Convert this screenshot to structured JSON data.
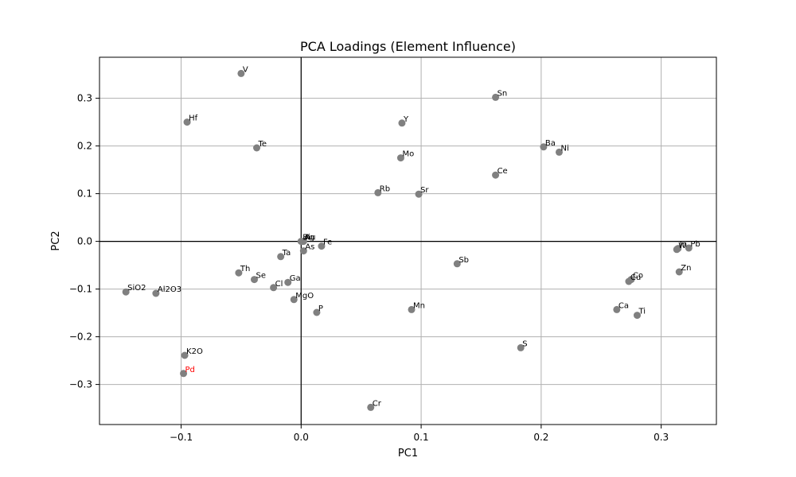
{
  "chart_data": {
    "type": "scatter",
    "title": "PCA Loadings (Element Influence)",
    "xlabel": "PC1",
    "ylabel": "PC2",
    "xlim": [
      -0.168,
      0.346
    ],
    "ylim": [
      -0.384,
      0.386
    ],
    "xticks": [
      -0.1,
      0.0,
      0.1,
      0.2,
      0.3
    ],
    "xtick_labels": [
      "−0.1",
      "0.0",
      "0.1",
      "0.2",
      "0.3"
    ],
    "yticks": [
      -0.3,
      -0.2,
      -0.1,
      0.0,
      0.1,
      0.2,
      0.3
    ],
    "ytick_labels": [
      "−0.3",
      "−0.2",
      "−0.1",
      "0.0",
      "0.1",
      "0.2",
      "0.3"
    ],
    "grid": true,
    "zero_lines": true,
    "point_color": "#808080",
    "highlight_color": "#ff0000",
    "points": [
      {
        "label": "V",
        "x": -0.05,
        "y": 0.352
      },
      {
        "label": "Hf",
        "x": -0.095,
        "y": 0.25
      },
      {
        "label": "Te",
        "x": -0.037,
        "y": 0.196
      },
      {
        "label": "Sn",
        "x": 0.162,
        "y": 0.302
      },
      {
        "label": "Y",
        "x": 0.084,
        "y": 0.248
      },
      {
        "label": "Mo",
        "x": 0.083,
        "y": 0.175
      },
      {
        "label": "Ba",
        "x": 0.202,
        "y": 0.198
      },
      {
        "label": "Ni",
        "x": 0.215,
        "y": 0.187
      },
      {
        "label": "Ce",
        "x": 0.162,
        "y": 0.139
      },
      {
        "label": "Rb",
        "x": 0.064,
        "y": 0.102
      },
      {
        "label": "Sr",
        "x": 0.098,
        "y": 0.099
      },
      {
        "label": "Bi",
        "x": 0.0,
        "y": 0.0
      },
      {
        "label": "Ag",
        "x": 0.001,
        "y": 0.0
      },
      {
        "label": "Au",
        "x": 0.002,
        "y": 0.0
      },
      {
        "label": "Fe",
        "x": 0.017,
        "y": -0.01
      },
      {
        "label": "As",
        "x": 0.002,
        "y": -0.02
      },
      {
        "label": "Ta",
        "x": -0.017,
        "y": -0.032
      },
      {
        "label": "Th",
        "x": -0.052,
        "y": -0.066
      },
      {
        "label": "Se",
        "x": -0.039,
        "y": -0.08
      },
      {
        "label": "Ga",
        "x": -0.011,
        "y": -0.086
      },
      {
        "label": "Cl",
        "x": -0.023,
        "y": -0.097
      },
      {
        "label": "MgO",
        "x": -0.006,
        "y": -0.122
      },
      {
        "label": "P",
        "x": 0.013,
        "y": -0.149
      },
      {
        "label": "SiO2",
        "x": -0.146,
        "y": -0.106
      },
      {
        "label": "Al2O3",
        "x": -0.121,
        "y": -0.109
      },
      {
        "label": "K2O",
        "x": -0.097,
        "y": -0.239
      },
      {
        "label": "Pd",
        "x": -0.098,
        "y": -0.277,
        "highlight": true
      },
      {
        "label": "Cr",
        "x": 0.058,
        "y": -0.348
      },
      {
        "label": "Sb",
        "x": 0.13,
        "y": -0.047
      },
      {
        "label": "Mn",
        "x": 0.092,
        "y": -0.143
      },
      {
        "label": "S",
        "x": 0.183,
        "y": -0.223
      },
      {
        "label": "Ca",
        "x": 0.263,
        "y": -0.143
      },
      {
        "label": "Ti",
        "x": 0.28,
        "y": -0.155
      },
      {
        "label": "Cu",
        "x": 0.273,
        "y": -0.084
      },
      {
        "label": "Co",
        "x": 0.275,
        "y": -0.08
      },
      {
        "label": "Zn",
        "x": 0.315,
        "y": -0.064
      },
      {
        "label": "W",
        "x": 0.313,
        "y": -0.017
      },
      {
        "label": "In",
        "x": 0.314,
        "y": -0.015
      },
      {
        "label": "Pb",
        "x": 0.323,
        "y": -0.014
      }
    ]
  }
}
